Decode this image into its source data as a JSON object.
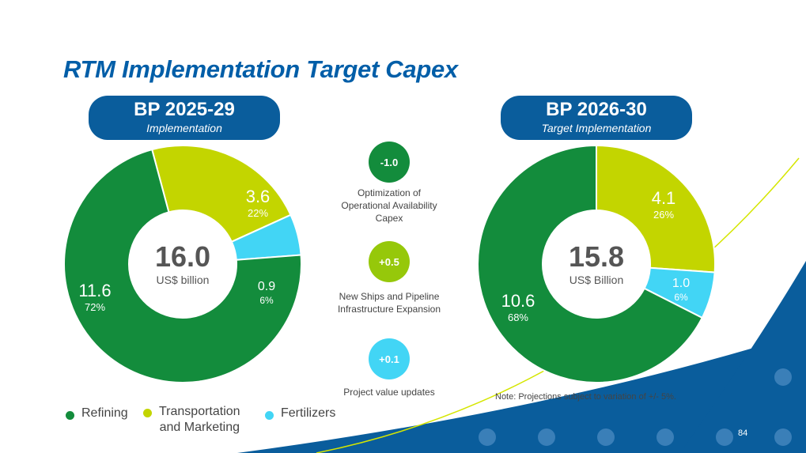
{
  "title": "RTM Implementation Target Capex",
  "colors": {
    "refining": "#138c3c",
    "transportation": "#c3d500",
    "fertilizers": "#42d5f5",
    "navy": "#0a5d9c",
    "bubble_neg": "#138c3c",
    "bubble_pos": "#96c80a",
    "bubble_pos_light": "#42d5f5"
  },
  "left_plan": {
    "heading": "BP 2025-29",
    "subheading": "Implementation"
  },
  "right_plan": {
    "heading": "BP 2026-30",
    "subheading": "Target Implementation"
  },
  "chart_data": [
    {
      "type": "pie",
      "title": "BP 2025-29",
      "center_value": "16.0",
      "center_unit": "US$ billion",
      "series": [
        {
          "name": "Refining",
          "value": 11.6,
          "value_label": "11.6",
          "percent_label": "72%"
        },
        {
          "name": "Transportation and Marketing",
          "value": 3.6,
          "value_label": "3.6",
          "percent_label": "22%"
        },
        {
          "name": "Fertilizers",
          "value": 0.9,
          "value_label": "0.9",
          "percent_label": "6%"
        }
      ]
    },
    {
      "type": "pie",
      "title": "BP 2026-30",
      "center_value": "15.8",
      "center_unit": "US$ Billion",
      "series": [
        {
          "name": "Refining",
          "value": 10.6,
          "value_label": "10.6",
          "percent_label": "68%"
        },
        {
          "name": "Transportation and Marketing",
          "value": 4.1,
          "value_label": "4.1",
          "percent_label": "26%"
        },
        {
          "name": "Fertilizers",
          "value": 1.0,
          "value_label": "1.0",
          "percent_label": "6%"
        }
      ]
    }
  ],
  "changes": [
    {
      "value": "-1.0",
      "label_line1": "Optimization of",
      "label_line2": "Operational Availability",
      "label_line3": "Capex"
    },
    {
      "value": "+0.5",
      "label_line1": "New Ships and Pipeline",
      "label_line2": "Infrastructure Expansion"
    },
    {
      "value": "+0.1",
      "label_line1": "Project value updates"
    }
  ],
  "legend": [
    {
      "label_line1": "Refining"
    },
    {
      "label_line1": "Transportation",
      "label_line2": "and Marketing"
    },
    {
      "label_line1": "Fertilizers"
    }
  ],
  "note": "Note: Projections subject to variation of +/- 5%.",
  "page_number": "84"
}
